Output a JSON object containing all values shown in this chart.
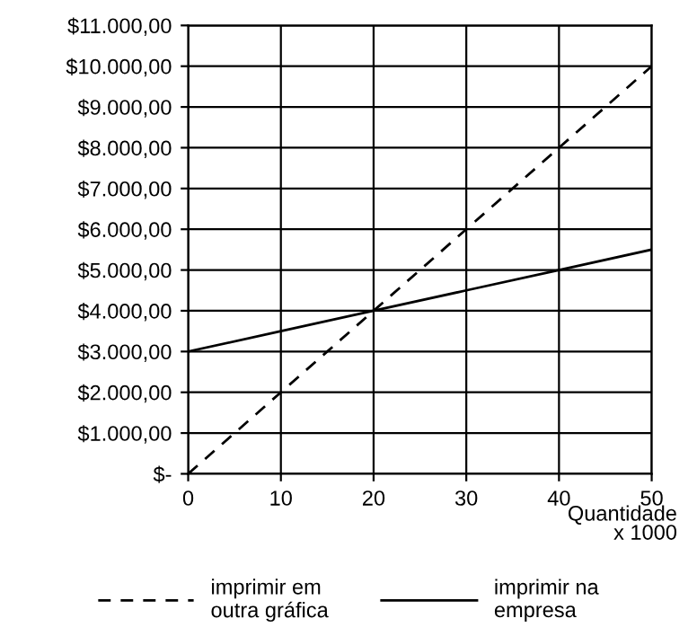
{
  "chart_data": {
    "type": "line",
    "xlabel": "Quantidade\nx 1000",
    "legend": "bottom",
    "grid": true,
    "marker": "none",
    "xlim": [
      0,
      50
    ],
    "xticks": [
      0,
      10,
      20,
      30,
      40,
      50
    ],
    "ylim": [
      0,
      11000
    ],
    "yticks": [
      {
        "value": 0,
        "label": "$-"
      },
      {
        "value": 1000,
        "label": "$1.000,00"
      },
      {
        "value": 2000,
        "label": "$2.000,00"
      },
      {
        "value": 3000,
        "label": "$3.000,00"
      },
      {
        "value": 4000,
        "label": "$4.000,00"
      },
      {
        "value": 5000,
        "label": "$5.000,00"
      },
      {
        "value": 6000,
        "label": "$6.000,00"
      },
      {
        "value": 7000,
        "label": "$7.000,00"
      },
      {
        "value": 8000,
        "label": "$8.000,00"
      },
      {
        "value": 9000,
        "label": "$9.000,00"
      },
      {
        "value": 10000,
        "label": "$10.000,00"
      },
      {
        "value": 11000,
        "label": "$11.000,00"
      }
    ],
    "series": [
      {
        "name": "imprimir em\noutra gráfica",
        "color": "#000000",
        "line_style": "dashed",
        "x": [
          0,
          10,
          20,
          30,
          40,
          50
        ],
        "values": [
          0,
          2000,
          4000,
          6000,
          8000,
          10000
        ]
      },
      {
        "name": "imprimir na\nempresa",
        "color": "#000000",
        "line_style": "solid",
        "x": [
          0,
          10,
          20,
          30,
          40,
          50
        ],
        "values": [
          3000,
          3500,
          4000,
          4500,
          5000,
          5500
        ]
      }
    ]
  }
}
